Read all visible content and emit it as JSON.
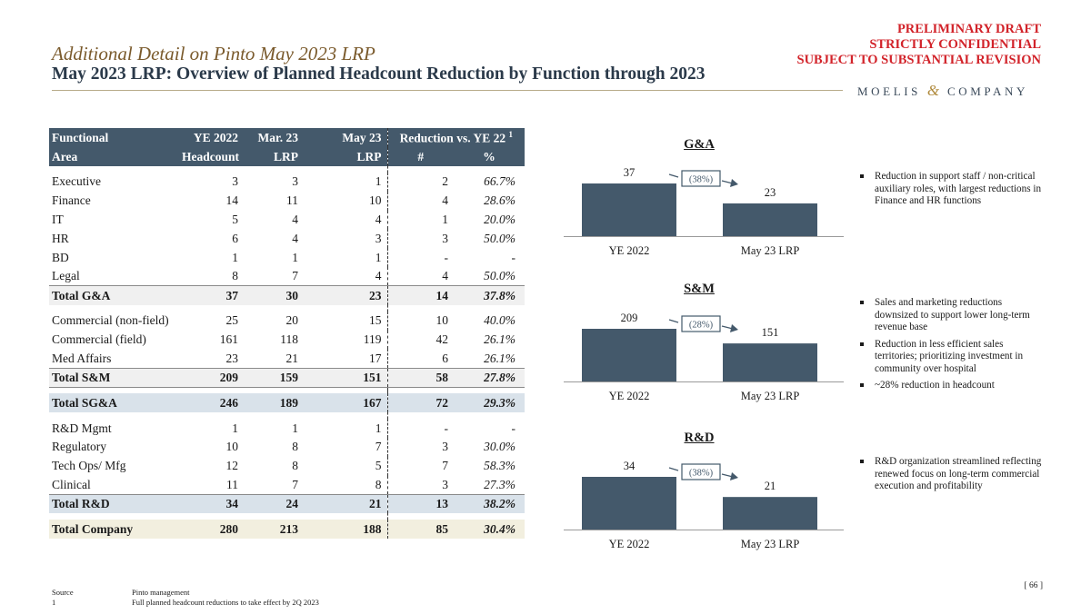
{
  "header": {
    "draft_lines": [
      "PRELIMINARY DRAFT",
      "STRICTLY CONFIDENTIAL",
      "SUBJECT TO SUBSTANTIAL REVISION"
    ],
    "subtitle": "Additional Detail on Pinto May 2023 LRP",
    "title": "May 2023 LRP: Overview of Planned Headcount Reduction by Function through 2023",
    "logo_left": "MOELIS",
    "logo_amp": "&",
    "logo_right": "COMPANY"
  },
  "table": {
    "head1": {
      "col0": "Functional",
      "col1": "YE 2022",
      "col2": "Mar. 23",
      "col3": "May 23",
      "col45": "Reduction vs. YE 22",
      "sup": "1"
    },
    "head2": {
      "col0": "Area",
      "col1": "Headcount",
      "col2": "LRP",
      "col3": "LRP",
      "col4": "#",
      "col5": "%"
    },
    "ga_rows": [
      [
        "Executive",
        "3",
        "3",
        "1",
        "2",
        "66.7%"
      ],
      [
        "Finance",
        "14",
        "11",
        "10",
        "4",
        "28.6%"
      ],
      [
        "IT",
        "5",
        "4",
        "4",
        "1",
        "20.0%"
      ],
      [
        "HR",
        "6",
        "4",
        "3",
        "3",
        "50.0%"
      ],
      [
        "BD",
        "1",
        "1",
        "1",
        "-",
        "-"
      ],
      [
        "Legal",
        "8",
        "7",
        "4",
        "4",
        "50.0%"
      ]
    ],
    "ga_total": [
      "Total G&A",
      "37",
      "30",
      "23",
      "14",
      "37.8%"
    ],
    "sm_rows": [
      [
        "Commercial (non-field)",
        "25",
        "20",
        "15",
        "10",
        "40.0%"
      ],
      [
        "Commercial (field)",
        "161",
        "118",
        "119",
        "42",
        "26.1%"
      ],
      [
        "Med Affairs",
        "23",
        "21",
        "17",
        "6",
        "26.1%"
      ]
    ],
    "sm_total": [
      "Total S&M",
      "209",
      "159",
      "151",
      "58",
      "27.8%"
    ],
    "sga_total": [
      "Total SG&A",
      "246",
      "189",
      "167",
      "72",
      "29.3%"
    ],
    "rd_rows": [
      [
        "R&D Mgmt",
        "1",
        "1",
        "1",
        "-",
        "-"
      ],
      [
        "Regulatory",
        "10",
        "8",
        "7",
        "3",
        "30.0%"
      ],
      [
        "Tech Ops/ Mfg",
        "12",
        "8",
        "5",
        "7",
        "58.3%"
      ],
      [
        "Clinical",
        "11",
        "7",
        "8",
        "3",
        "27.3%"
      ]
    ],
    "rd_total": [
      "Total R&D",
      "34",
      "24",
      "21",
      "13",
      "38.2%"
    ],
    "co_total": [
      "Total Company",
      "280",
      "213",
      "188",
      "85",
      "30.4%"
    ]
  },
  "chart_data": [
    {
      "type": "bar",
      "title": "G&A",
      "categories": [
        "YE 2022",
        "May 23 LRP"
      ],
      "values": [
        37,
        23
      ],
      "change_label": "(38%)",
      "bar_color": "#44596b"
    },
    {
      "type": "bar",
      "title": "S&M",
      "categories": [
        "YE 2022",
        "May 23 LRP"
      ],
      "values": [
        209,
        151
      ],
      "change_label": "(28%)",
      "bar_color": "#44596b"
    },
    {
      "type": "bar",
      "title": "R&D",
      "categories": [
        "YE 2022",
        "May 23 LRP"
      ],
      "values": [
        34,
        21
      ],
      "change_label": "(38%)",
      "bar_color": "#44596b"
    }
  ],
  "bullets": {
    "ga": [
      "Reduction in support staff / non-critical auxiliary roles, with largest reductions in Finance and HR functions"
    ],
    "sm": [
      "Sales and marketing reductions downsized to support lower long-term revenue base",
      "Reduction in less efficient sales territories; prioritizing investment in community over hospital",
      "~28% reduction in headcount"
    ],
    "rd": [
      "R&D organization streamlined reflecting renewed focus on long-term commercial execution and profitability"
    ]
  },
  "footer": {
    "source_label": "Source",
    "source_text": "Pinto management",
    "note_label": "1",
    "note_text": "Full planned headcount reductions to take effect by 2Q 2023"
  },
  "page_number": "[ 66 ]"
}
